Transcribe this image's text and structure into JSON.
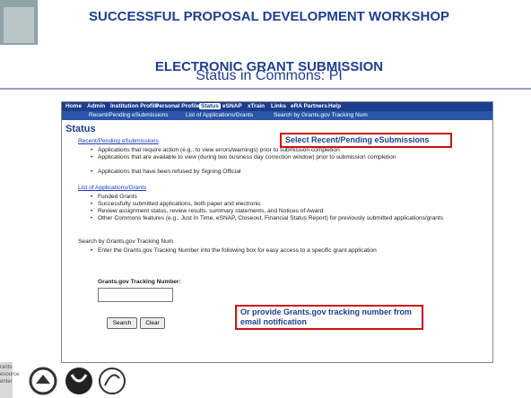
{
  "header": {
    "title": "SUCCESSFUL PROPOSAL DEVELOPMENT WORKSHOP",
    "section": "ELECTRONIC GRANT SUBMISSION",
    "subtitle": "Status in Commons: PI"
  },
  "nav": {
    "items": [
      "Home",
      "Admin",
      "Institution Profile",
      "Personal Profile",
      "Status",
      "eSNAP",
      "xTrain",
      "Links",
      "eRA Partners",
      "Help"
    ],
    "subitems": [
      "Recent/Pending eSubmissions",
      "List of Applications/Grants",
      "Search by Grants.gov Tracking Num"
    ]
  },
  "page": {
    "heading": "Status",
    "sections": [
      {
        "title": "Recent/Pending eSubmissions",
        "bullets": [
          "Applications that require action (e.g., to view errors/warnings) prior to submission completion",
          "Applications that are available to view (during two business day correction window) prior to submission completion",
          "Applications that have been refused by Signing Official"
        ]
      },
      {
        "title": "List of Applications/Grants",
        "bullets": [
          "Funded Grants",
          "Successfully submitted applications, both paper and electronic",
          "Review assignment status, review results, summary statements, and Notices of Award",
          "Other Commons features (e.g., Just In Time, eSNAP, Closeout, Financial Status Report) for previously submitted applications/grants"
        ]
      },
      {
        "title": "Search by Grants.gov Tracking Num",
        "bullets": [
          "Enter the Grants.gov Tracking Number into the following box for easy access to a specific grant application"
        ]
      }
    ],
    "form": {
      "label": "Grants.gov Tracking Number:",
      "buttons": [
        "Search",
        "Clear"
      ]
    }
  },
  "callouts": [
    "Select Recent/Pending eSubmissions",
    "Or provide Grants.gov tracking number from email notification"
  ],
  "footer": {
    "logo_text": [
      "rants",
      "esource",
      "enter"
    ]
  }
}
